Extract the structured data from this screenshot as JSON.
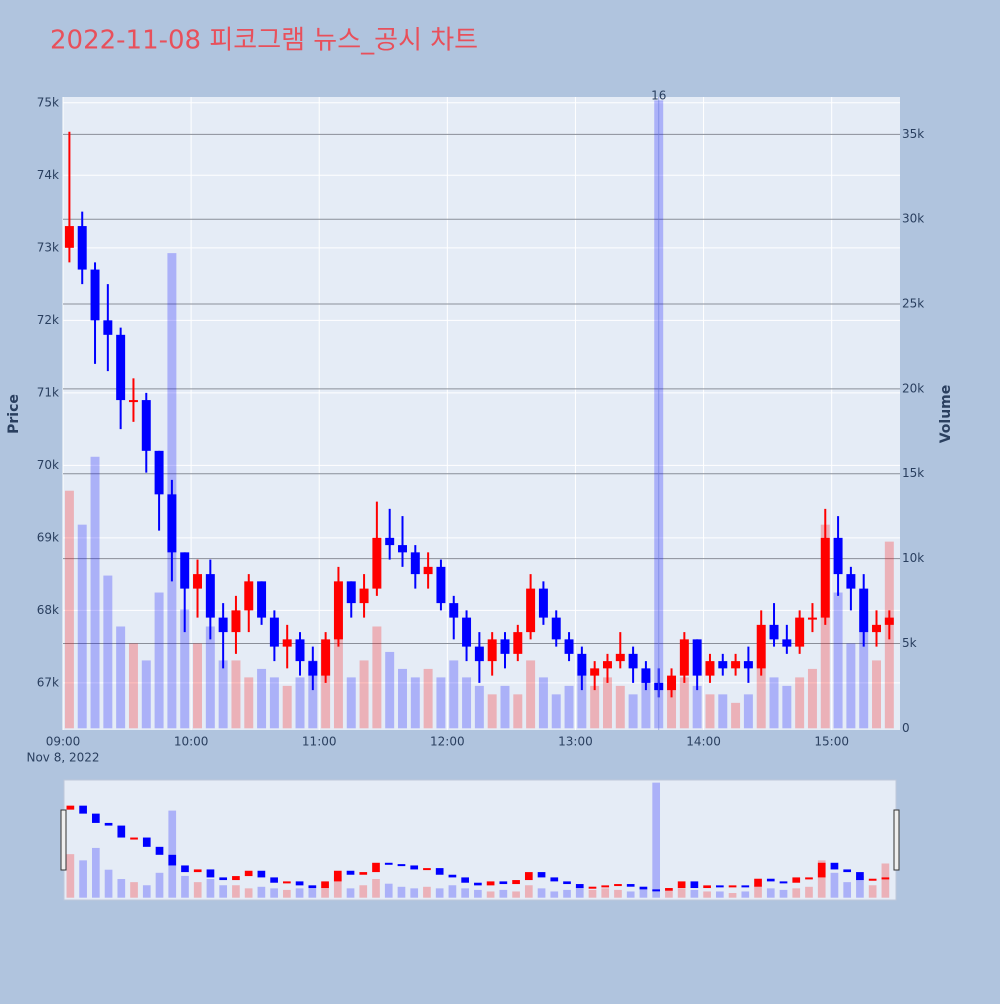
{
  "chart_data": {
    "type": "candlestick",
    "title": "2022-11-08 피코그램 뉴스_공시 차트",
    "y_title": "Price",
    "y2_title": "Volume",
    "x_date_label": "Nov 8, 2022",
    "increasing_color": "#ff0000",
    "decreasing_color": "#0000ff",
    "x": [
      "2022-11-08 09:03",
      "2022-11-08 09:09",
      "2022-11-08 09:15",
      "2022-11-08 09:21",
      "2022-11-08 09:27",
      "2022-11-08 09:33",
      "2022-11-08 09:39",
      "2022-11-08 09:45",
      "2022-11-08 09:51",
      "2022-11-08 09:57",
      "2022-11-08 10:03",
      "2022-11-08 10:09",
      "2022-11-08 10:15",
      "2022-11-08 10:21",
      "2022-11-08 10:27",
      "2022-11-08 10:33",
      "2022-11-08 10:39",
      "2022-11-08 10:45",
      "2022-11-08 10:51",
      "2022-11-08 10:57",
      "2022-11-08 11:03",
      "2022-11-08 11:09",
      "2022-11-08 11:15",
      "2022-11-08 11:21",
      "2022-11-08 11:27",
      "2022-11-08 11:33",
      "2022-11-08 11:39",
      "2022-11-08 11:45",
      "2022-11-08 11:51",
      "2022-11-08 11:57",
      "2022-11-08 12:03",
      "2022-11-08 12:09",
      "2022-11-08 12:15",
      "2022-11-08 12:21",
      "2022-11-08 12:27",
      "2022-11-08 12:33",
      "2022-11-08 12:39",
      "2022-11-08 12:45",
      "2022-11-08 12:51",
      "2022-11-08 12:57",
      "2022-11-08 13:03",
      "2022-11-08 13:09",
      "2022-11-08 13:15",
      "2022-11-08 13:21",
      "2022-11-08 13:27",
      "2022-11-08 13:33",
      "2022-11-08 13:39",
      "2022-11-08 13:45",
      "2022-11-08 13:51",
      "2022-11-08 13:57",
      "2022-11-08 14:03",
      "2022-11-08 14:09",
      "2022-11-08 14:15",
      "2022-11-08 14:21",
      "2022-11-08 14:27",
      "2022-11-08 14:33",
      "2022-11-08 14:39",
      "2022-11-08 14:45",
      "2022-11-08 14:51",
      "2022-11-08 14:57",
      "2022-11-08 15:03",
      "2022-11-08 15:09",
      "2022-11-08 15:15",
      "2022-11-08 15:21",
      "2022-11-08 15:27"
    ],
    "open": [
      73000,
      73300,
      72700,
      72000,
      71800,
      70900,
      70900,
      70200,
      69600,
      68800,
      68300,
      68500,
      67900,
      67700,
      68000,
      68400,
      67900,
      67500,
      67600,
      67300,
      67100,
      67600,
      68400,
      68100,
      68300,
      69000,
      68900,
      68800,
      68500,
      68600,
      68100,
      67900,
      67500,
      67300,
      67600,
      67400,
      67700,
      68300,
      67900,
      67600,
      67400,
      67100,
      67200,
      67300,
      67400,
      67200,
      67000,
      66900,
      67100,
      67600,
      67100,
      67300,
      67200,
      67300,
      67200,
      67800,
      67600,
      67500,
      67900,
      67900,
      69000,
      68500,
      68300,
      67700,
      67800
    ],
    "high": [
      74600,
      73500,
      72800,
      72500,
      71900,
      71200,
      71000,
      70200,
      69800,
      68800,
      68700,
      68700,
      68100,
      68200,
      68500,
      68400,
      68000,
      67800,
      67700,
      67500,
      67700,
      68600,
      68400,
      68500,
      69500,
      69400,
      69300,
      68900,
      68800,
      68700,
      68200,
      68000,
      67700,
      67700,
      67700,
      67800,
      68500,
      68400,
      68000,
      67700,
      67500,
      67300,
      67400,
      67700,
      67500,
      67300,
      67200,
      67200,
      67700,
      67600,
      67400,
      67400,
      67400,
      67500,
      68000,
      68100,
      67800,
      68000,
      68100,
      69400,
      69300,
      68600,
      68500,
      68000,
      68000
    ],
    "low": [
      72800,
      72500,
      71400,
      71300,
      70500,
      70600,
      69900,
      69100,
      68400,
      67700,
      67900,
      67600,
      67200,
      67400,
      67700,
      67800,
      67300,
      67200,
      67100,
      66900,
      67000,
      67500,
      67900,
      67900,
      68200,
      68700,
      68600,
      68300,
      68300,
      68000,
      67600,
      67300,
      67000,
      67100,
      67200,
      67300,
      67600,
      67800,
      67500,
      67300,
      66900,
      66900,
      67000,
      67200,
      67000,
      66900,
      66800,
      66800,
      67000,
      66900,
      67000,
      67100,
      67100,
      67000,
      67100,
      67500,
      67400,
      67400,
      67700,
      67800,
      68200,
      68000,
      67500,
      67500,
      67600
    ],
    "close": [
      73300,
      72700,
      72000,
      71800,
      70900,
      70900,
      70200,
      69600,
      68800,
      68300,
      68500,
      67900,
      67700,
      68000,
      68400,
      67900,
      67500,
      67600,
      67300,
      67100,
      67600,
      68400,
      68100,
      68300,
      69000,
      68900,
      68800,
      68500,
      68600,
      68100,
      67900,
      67500,
      67300,
      67600,
      67400,
      67700,
      68300,
      67900,
      67600,
      67400,
      67100,
      67200,
      67300,
      67400,
      67200,
      67000,
      66900,
      67100,
      67600,
      67100,
      67300,
      67200,
      67300,
      67200,
      67800,
      67600,
      67500,
      67900,
      67900,
      69000,
      68500,
      68300,
      67700,
      67800,
      67900
    ],
    "volume": [
      14000,
      12000,
      16000,
      9000,
      6000,
      5000,
      4000,
      8000,
      28000,
      7000,
      5000,
      6000,
      4000,
      4000,
      3000,
      3500,
      3000,
      2500,
      3000,
      4000,
      5000,
      7000,
      3000,
      4000,
      6000,
      4500,
      3500,
      3000,
      3500,
      3000,
      4000,
      3000,
      2500,
      2000,
      2500,
      2000,
      4000,
      3000,
      2000,
      2500,
      3500,
      2500,
      3000,
      2500,
      2000,
      3000,
      37000,
      3000,
      3000,
      2500,
      2000,
      2000,
      1500,
      2000,
      4000,
      3000,
      2500,
      3000,
      3500,
      12000,
      8000,
      5000,
      7000,
      4000,
      11000
    ],
    "annotation": {
      "x": "2022-11-08 13:39",
      "text": "16"
    },
    "xlim": [
      "2022-11-08 09:00",
      "2022-11-08 15:32"
    ],
    "xticks": [
      {
        "value": "2022-11-08 09:00",
        "label": "09:00"
      },
      {
        "value": "2022-11-08 10:00",
        "label": "10:00"
      },
      {
        "value": "2022-11-08 11:00",
        "label": "11:00"
      },
      {
        "value": "2022-11-08 12:00",
        "label": "12:00"
      },
      {
        "value": "2022-11-08 13:00",
        "label": "13:00"
      },
      {
        "value": "2022-11-08 14:00",
        "label": "14:00"
      },
      {
        "value": "2022-11-08 15:00",
        "label": "15:00"
      }
    ],
    "ylim": [
      66350,
      75080
    ],
    "yticks": [
      {
        "value": 67000,
        "label": "67k"
      },
      {
        "value": 68000,
        "label": "68k"
      },
      {
        "value": 69000,
        "label": "69k"
      },
      {
        "value": 70000,
        "label": "70k"
      },
      {
        "value": 71000,
        "label": "71k"
      },
      {
        "value": 72000,
        "label": "72k"
      },
      {
        "value": 73000,
        "label": "73k"
      },
      {
        "value": 74000,
        "label": "74k"
      },
      {
        "value": 75000,
        "label": "75k"
      }
    ],
    "y2lim": [
      -100,
      37200
    ],
    "y2ticks": [
      0,
      {
        "value": 5000,
        "label": "5k"
      },
      {
        "value": 10000,
        "label": "10k"
      },
      {
        "value": 15000,
        "label": "15k"
      },
      {
        "value": 20000,
        "label": "20k"
      },
      {
        "value": 25000,
        "label": "25k"
      },
      {
        "value": 30000,
        "label": "30k"
      },
      {
        "value": 35000,
        "label": "35k"
      }
    ],
    "grid": true,
    "rangeslider": true
  }
}
